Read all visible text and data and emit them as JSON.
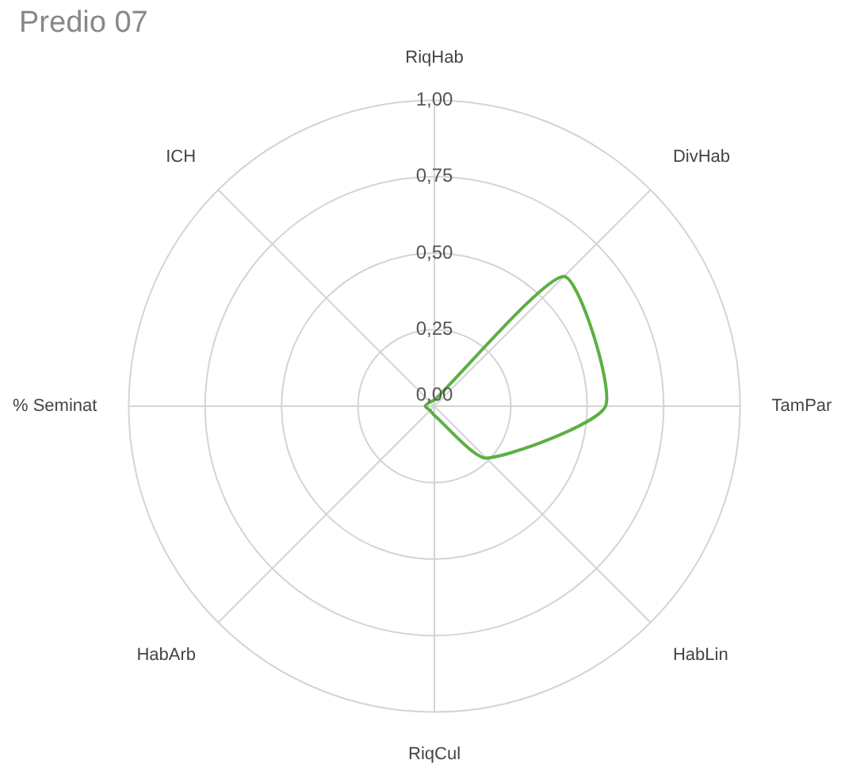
{
  "chart_data": {
    "type": "radar",
    "title": "Predio 07",
    "categories": [
      "RiqHab",
      "DivHab",
      "TamPar",
      "HabLin",
      "RiqCul",
      "HabArb",
      "% Seminat",
      "ICH"
    ],
    "series": [
      {
        "color": "#5bb043",
        "values": [
          0.02,
          0.6,
          0.56,
          0.24,
          0.03,
          0.02,
          0.03,
          0.02
        ]
      }
    ],
    "ylim": [
      0,
      1
    ],
    "yticks": [
      {
        "value": 0,
        "label": "0,00"
      },
      {
        "value": 0.25,
        "label": "0,25"
      },
      {
        "value": 0.5,
        "label": "0,50"
      },
      {
        "value": 0.75,
        "label": "0,75"
      },
      {
        "value": 1,
        "label": "1,00"
      }
    ],
    "grid": true,
    "legend": false,
    "marker": "none",
    "line_style": "solid"
  }
}
